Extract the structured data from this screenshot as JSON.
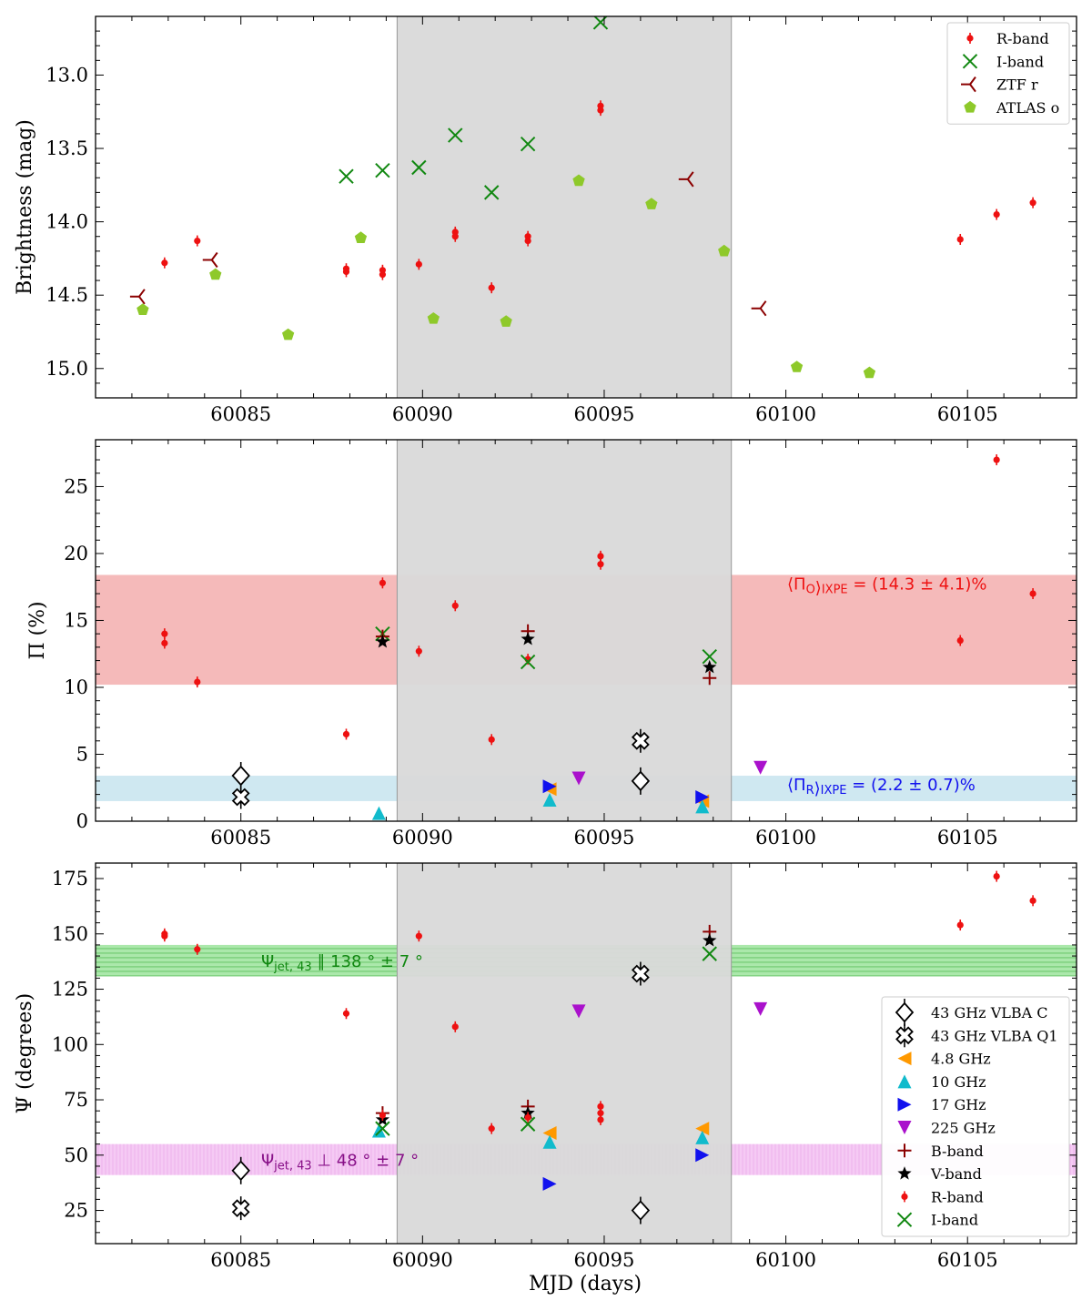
{
  "chart_data": [
    {
      "type": "scatter",
      "title": "",
      "xlabel": "",
      "ylabel": "Brightness (mag)",
      "xlim": [
        60081,
        60108
      ],
      "ylim": [
        15.2,
        12.6
      ],
      "y_inverted": true,
      "xticks": [
        60085,
        60090,
        60095,
        60100,
        60105
      ],
      "yticks": [
        13.0,
        13.5,
        14.0,
        14.5,
        15.0
      ],
      "xtick_labels": [
        "60085",
        "60090",
        "60095",
        "60100",
        "60105"
      ],
      "ytick_labels": [
        "13.0",
        "13.5",
        "14.0",
        "14.5",
        "15.0"
      ],
      "shaded_region": {
        "x_start": 60089.3,
        "x_end": 60098.5,
        "color": "#d9d9d9"
      },
      "legend_position": "top-right",
      "series": [
        {
          "name": "R-band",
          "marker": "dot",
          "color": "#ee1111",
          "x": [
            60082.9,
            60083.8,
            60087.9,
            60087.9,
            60088.9,
            60088.9,
            60089.9,
            60090.9,
            60090.9,
            60091.9,
            60092.9,
            60092.9,
            60094.9,
            60094.9,
            60104.8,
            60105.8,
            60106.8
          ],
          "y": [
            14.28,
            14.13,
            14.32,
            14.34,
            14.33,
            14.36,
            14.29,
            14.07,
            14.1,
            14.45,
            14.1,
            14.13,
            13.21,
            13.24,
            14.12,
            13.95,
            13.87
          ]
        },
        {
          "name": "I-band",
          "marker": "x",
          "color": "#118811",
          "x": [
            60087.9,
            60088.9,
            60089.9,
            60090.9,
            60091.9,
            60092.9,
            60094.9
          ],
          "y": [
            13.69,
            13.65,
            13.63,
            13.41,
            13.8,
            13.47,
            12.64
          ]
        },
        {
          "name": "ZTF r",
          "marker": "tri_left",
          "color": "#8b0000",
          "x": [
            60082.2,
            60084.2,
            60097.3,
            60099.3
          ],
          "y": [
            14.51,
            14.26,
            13.71,
            14.59
          ]
        },
        {
          "name": "ATLAS o",
          "marker": "pentagon",
          "color": "#8ec92a",
          "x": [
            60082.3,
            60084.3,
            60086.3,
            60088.3,
            60090.3,
            60092.3,
            60094.3,
            60096.3,
            60098.3,
            60100.3,
            60102.3
          ],
          "y": [
            14.6,
            14.36,
            14.77,
            14.11,
            14.66,
            14.68,
            13.72,
            13.88,
            14.2,
            14.99,
            15.03
          ]
        }
      ]
    },
    {
      "type": "scatter",
      "title": "",
      "xlabel": "",
      "ylabel": "Π (%)",
      "xlim": [
        60081,
        60108
      ],
      "ylim": [
        0,
        28.5
      ],
      "xticks": [
        60085,
        60090,
        60095,
        60100,
        60105
      ],
      "yticks": [
        0,
        5,
        10,
        15,
        20,
        25
      ],
      "xtick_labels": [
        "60085",
        "60090",
        "60095",
        "60100",
        "60105"
      ],
      "ytick_labels": [
        "0",
        "5",
        "10",
        "15",
        "20",
        "25"
      ],
      "shaded_region": {
        "x_start": 60089.3,
        "x_end": 60098.5,
        "color": "#d9d9d9"
      },
      "bands": [
        {
          "label_main": "⟨Π",
          "label_sub": "O",
          "label_sub2": "IXPE",
          "label_rest": " = (14.3 ± 4.1)%",
          "y_low": 10.2,
          "y_high": 18.4,
          "color": "#f2a3a3",
          "text_color": "#ee1111"
        },
        {
          "label_main": "⟨Π",
          "label_sub": "R",
          "label_sub2": "IXPE",
          "label_rest": " = (2.2 ± 0.7)%",
          "y_low": 1.5,
          "y_high": 3.4,
          "color": "#bfe0ec",
          "text_color": "#1111ee"
        }
      ],
      "series": [
        {
          "name": "R-band",
          "marker": "dot",
          "color": "#ee1111",
          "x": [
            60082.9,
            60082.9,
            60083.8,
            60087.9,
            60088.9,
            60089.9,
            60090.9,
            60091.9,
            60092.9,
            60094.9,
            60094.9,
            60104.8,
            60105.8,
            60106.8
          ],
          "y": [
            14.0,
            13.3,
            10.4,
            6.5,
            17.8,
            12.7,
            16.1,
            6.1,
            12.1,
            19.8,
            19.2,
            13.5,
            27.0,
            17.0
          ]
        },
        {
          "name": "I-band",
          "marker": "x",
          "color": "#118811",
          "x": [
            60088.9,
            60092.9,
            60097.9
          ],
          "y": [
            14.0,
            11.9,
            12.3
          ]
        },
        {
          "name": "B-band",
          "marker": "plus",
          "color": "#8b0000",
          "x": [
            60088.9,
            60092.9,
            60097.9
          ],
          "y": [
            13.8,
            14.2,
            10.7
          ]
        },
        {
          "name": "V-band",
          "marker": "star",
          "color": "#000000",
          "x": [
            60088.9,
            60092.9,
            60097.9
          ],
          "y": [
            13.4,
            13.6,
            11.5
          ]
        },
        {
          "name": "43 GHz VLBA C",
          "marker": "diamond",
          "color": "#000000",
          "x": [
            60085.0,
            60096.0
          ],
          "y": [
            3.4,
            3.0
          ]
        },
        {
          "name": "43 GHz VLBA Q1",
          "marker": "cross_open",
          "color": "#000000",
          "x": [
            60085.0,
            60096.0
          ],
          "y": [
            1.8,
            6.0
          ]
        },
        {
          "name": "4.8 GHz",
          "marker": "tri_left",
          "color": "#ff9900",
          "x": [
            60093.5,
            60097.7
          ],
          "y": [
            2.4,
            1.5
          ]
        },
        {
          "name": "10 GHz",
          "marker": "tri_up",
          "color": "#11bbcc",
          "x": [
            60088.8,
            60093.5,
            60097.7
          ],
          "y": [
            0.6,
            1.6,
            1.1
          ]
        },
        {
          "name": "17 GHz",
          "marker": "tri_right",
          "color": "#1111ee",
          "x": [
            60093.5,
            60097.7
          ],
          "y": [
            2.6,
            1.8
          ]
        },
        {
          "name": "225 GHz",
          "marker": "tri_down",
          "color": "#aa11cc",
          "x": [
            60094.3,
            60099.3
          ],
          "y": [
            3.2,
            4.0
          ]
        }
      ]
    },
    {
      "type": "scatter",
      "title": "",
      "xlabel": "MJD (days)",
      "ylabel": "Ψ (degrees)",
      "xlim": [
        60081,
        60108
      ],
      "ylim": [
        10,
        182
      ],
      "xticks": [
        60085,
        60090,
        60095,
        60100,
        60105
      ],
      "yticks": [
        25,
        50,
        75,
        100,
        125,
        150,
        175
      ],
      "xtick_labels": [
        "60085",
        "60090",
        "60095",
        "60100",
        "60105"
      ],
      "ytick_labels": [
        "25",
        "50",
        "75",
        "100",
        "125",
        "150",
        "175"
      ],
      "shaded_region": {
        "x_start": 60089.3,
        "x_end": 60098.5,
        "color": "#d9d9d9"
      },
      "legend_position": "lower-right",
      "bands": [
        {
          "label_main": "Ψ",
          "label_sub": "jet, 43",
          "label_rest": " ∥ 138 ° ± 7 °",
          "y_low": 131,
          "y_high": 145,
          "color": "#8fe08f",
          "text_color": "#118811"
        },
        {
          "label_main": "Ψ",
          "label_sub": "jet, 43",
          "label_rest": " ⊥ 48 ° ± 7 °",
          "y_low": 41,
          "y_high": 55,
          "color": "#f2b8f0",
          "text_color": "#881188"
        }
      ],
      "series": [
        {
          "name": "43 GHz VLBA C",
          "marker": "diamond",
          "color": "#000000",
          "x": [
            60085.0,
            60096.0
          ],
          "y": [
            43,
            25
          ]
        },
        {
          "name": "43 GHz VLBA Q1",
          "marker": "cross_open",
          "color": "#000000",
          "x": [
            60085.0,
            60096.0
          ],
          "y": [
            26,
            132
          ]
        },
        {
          "name": "4.8 GHz",
          "marker": "tri_left",
          "color": "#ff9900",
          "x": [
            60093.5,
            60097.7
          ],
          "y": [
            60,
            62
          ]
        },
        {
          "name": "10 GHz",
          "marker": "tri_up",
          "color": "#11bbcc",
          "x": [
            60088.8,
            60093.5,
            60097.7
          ],
          "y": [
            61,
            56,
            58
          ]
        },
        {
          "name": "17 GHz",
          "marker": "tri_right",
          "color": "#1111ee",
          "x": [
            60093.5,
            60097.7
          ],
          "y": [
            37,
            50
          ]
        },
        {
          "name": "225 GHz",
          "marker": "tri_down",
          "color": "#aa11cc",
          "x": [
            60094.3,
            60099.3
          ],
          "y": [
            115,
            116
          ]
        },
        {
          "name": "B-band",
          "marker": "plus",
          "color": "#8b0000",
          "x": [
            60088.9,
            60092.9,
            60097.9
          ],
          "y": [
            69,
            72,
            151
          ]
        },
        {
          "name": "V-band",
          "marker": "star",
          "color": "#000000",
          "x": [
            60088.9,
            60092.9,
            60097.9
          ],
          "y": [
            66,
            69,
            147
          ]
        },
        {
          "name": "R-band",
          "marker": "dot",
          "color": "#ee1111",
          "x": [
            60082.9,
            60082.9,
            60083.8,
            60087.9,
            60088.9,
            60089.9,
            60090.9,
            60091.9,
            60092.9,
            60094.9,
            60094.9,
            60094.9,
            60104.8,
            60105.8,
            60106.8
          ],
          "y": [
            150,
            149,
            143,
            114,
            68,
            149,
            108,
            62,
            67,
            72,
            69,
            66,
            154,
            176,
            165
          ]
        },
        {
          "name": "I-band",
          "marker": "x",
          "color": "#118811",
          "x": [
            60088.9,
            60092.9,
            60097.9
          ],
          "y": [
            62,
            64,
            141
          ]
        }
      ]
    }
  ]
}
